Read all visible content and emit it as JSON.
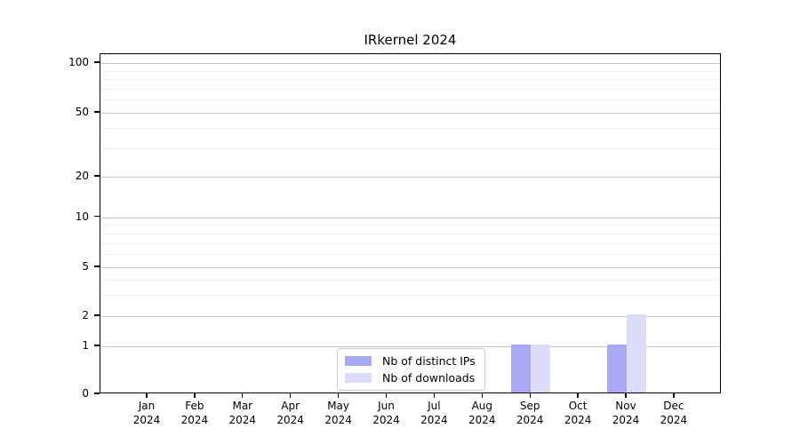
{
  "page": {
    "background": "#ffffff"
  },
  "chart_data": {
    "type": "bar",
    "title": "IRkernel 2024",
    "categories": [
      "Jan 2024",
      "Feb 2024",
      "Mar 2024",
      "Apr 2024",
      "May 2024",
      "Jun 2024",
      "Jul 2024",
      "Aug 2024",
      "Sep 2024",
      "Oct 2024",
      "Nov 2024",
      "Dec 2024"
    ],
    "series": [
      {
        "name": "Nb of distinct IPs",
        "color": "#a9a9f4",
        "values": [
          0,
          0,
          0,
          0,
          0,
          0,
          0,
          0,
          1,
          0,
          1,
          0
        ]
      },
      {
        "name": "Nb of downloads",
        "color": "#dcdcf8",
        "values": [
          0,
          0,
          0,
          0,
          0,
          0,
          0,
          0,
          1,
          0,
          2,
          0
        ]
      }
    ],
    "xlabel": "",
    "ylabel": "",
    "y_axis": {
      "scale": "log-like with zero baseline",
      "major_tick_values": [
        100,
        50,
        20,
        10,
        5,
        2,
        1,
        0
      ],
      "minor_gridline_values": [
        90,
        80,
        70,
        60,
        40,
        30,
        9,
        8,
        7,
        6,
        4,
        3
      ],
      "ylim": [
        0,
        100
      ]
    },
    "grid": "on",
    "legend": {
      "position": "inside bottom-center-left",
      "entries": [
        "Nb of distinct IPs",
        "Nb of downloads"
      ]
    },
    "colors": {
      "major_gridline": "#c6c6c6",
      "minor_gridline": "#ededed",
      "axis": "#000000",
      "text": "#000000"
    }
  }
}
